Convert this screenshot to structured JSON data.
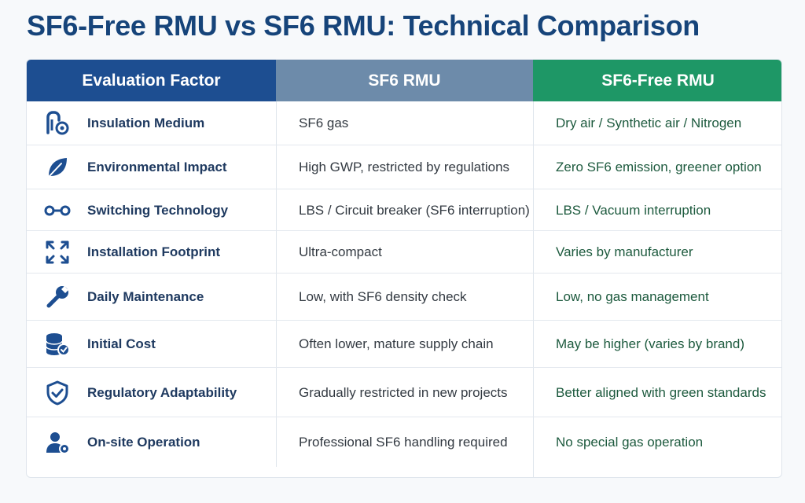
{
  "title": "SF6-Free RMU vs SF6 RMU: Technical Comparison",
  "headers": [
    "Evaluation Factor",
    "SF6 RMU",
    "SF6-Free RMU"
  ],
  "colors": {
    "title": "#16447a",
    "header_factor": "#1d4e91",
    "header_sf6": "#6d8baa",
    "header_sf6_free": "#1e9766",
    "icon": "#1d4e91"
  },
  "rows": [
    {
      "icon": "gas-bubbles-icon",
      "factor": "Insulation Medium",
      "sf6": "SF6 gas",
      "sf6_free": "Dry air / Synthetic air / Nitrogen"
    },
    {
      "icon": "leaf-icon",
      "factor": "Environmental Impact",
      "sf6": "High GWP, restricted by regulations",
      "sf6_free": "Zero SF6 emission, greener option"
    },
    {
      "icon": "switch-link-icon",
      "factor": "Switching Technology",
      "sf6": "LBS / Circuit breaker (SF6 interruption)",
      "sf6_free": "LBS / Vacuum interruption"
    },
    {
      "icon": "expand-arrows-icon",
      "factor": "Installation Footprint",
      "sf6": "Ultra-compact",
      "sf6_free": "Varies by manufacturer"
    },
    {
      "icon": "wrench-icon",
      "factor": "Daily Maintenance",
      "sf6": "Low, with SF6 density check",
      "sf6_free": "Low, no gas management"
    },
    {
      "icon": "coin-stack-icon",
      "factor": "Initial Cost",
      "sf6": "Often lower, mature supply chain",
      "sf6_free": "May be higher (varies by brand)"
    },
    {
      "icon": "shield-check-icon",
      "factor": "Regulatory Adaptability",
      "sf6": "Gradually restricted in new projects",
      "sf6_free": "Better aligned with green standards"
    },
    {
      "icon": "user-gear-icon",
      "factor": "On-site Operation",
      "sf6": "Professional SF6 handling required",
      "sf6_free": "No special gas operation"
    }
  ]
}
